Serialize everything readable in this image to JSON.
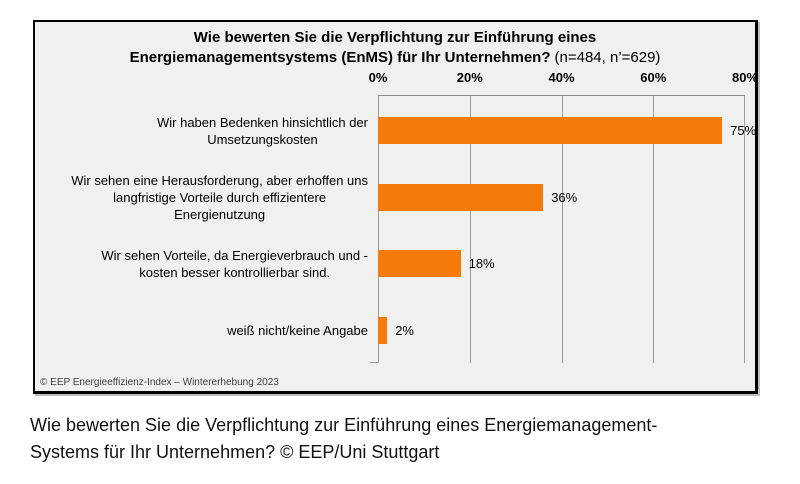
{
  "chart_data": {
    "type": "bar",
    "orientation": "horizontal",
    "title_line1": "Wie bewerten Sie die Verpflichtung zur Einführung eines",
    "title_line2": "Energiemanagementsystems (EnMS) für Ihr Unternehmen?",
    "title_note": "(n=484, n’=629)",
    "categories": [
      "Wir haben Bedenken hinsichtlich der\nUmsetzungskosten",
      "Wir sehen eine Herausforderung, aber erhoffen uns\nlangfristige Vorteile durch effizientere\nEnergienutzung",
      "Wir sehen Vorteile, da Energieverbrauch und -\nkosten besser kontrollierbar sind.",
      "weiß nicht/keine Angabe"
    ],
    "values": [
      75,
      36,
      18,
      2
    ],
    "value_labels": [
      "75%",
      "36%",
      "18%",
      "2%"
    ],
    "x_ticks": [
      "0%",
      "20%",
      "40%",
      "60%",
      "80%"
    ],
    "xlim": [
      0,
      80
    ],
    "grid": true,
    "legend": false,
    "bar_color": "#f57a0a",
    "background_color": "#f0f0f0",
    "gridline_color": "#9b9b9b",
    "source": "© EEP Energieeffizienz-Index – Wintererhebung 2023"
  },
  "caption": {
    "text": "Wie bewerten Sie die Verpflichtung zur Einführung eines Energiemanagement-\nSystems für Ihr Unternehmen? © EEP/Uni Stuttgart"
  }
}
